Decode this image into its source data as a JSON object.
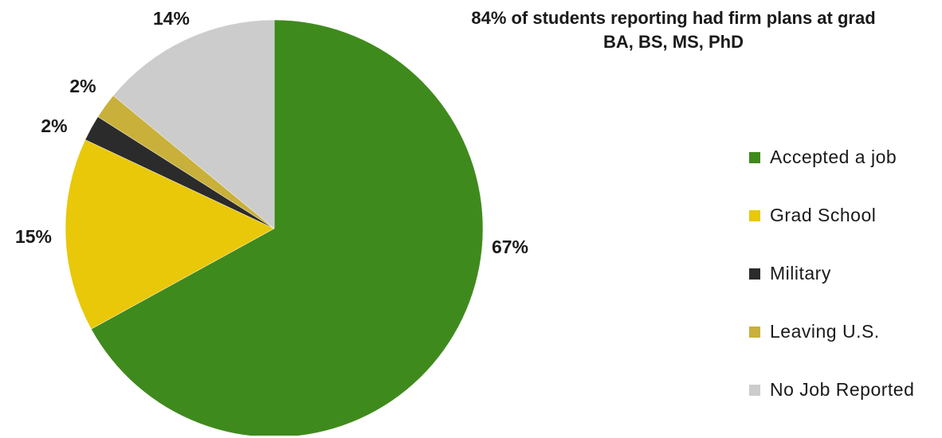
{
  "chart_data": {
    "type": "pie",
    "title_line1": "84% of students reporting had firm plans at grad",
    "title_line2": "BA, BS, MS, PhD",
    "slices": [
      {
        "label": "Accepted a job",
        "value": 67,
        "display": "67%",
        "color": "#3f8a1d"
      },
      {
        "label": "Grad School",
        "value": 15,
        "display": "15%",
        "color": "#e8c808"
      },
      {
        "label": "Military",
        "value": 2,
        "display": "2%",
        "color": "#2b2b2b"
      },
      {
        "label": "Leaving U.S.",
        "value": 2,
        "display": "2%",
        "color": "#c9b03a"
      },
      {
        "label": "No Job Reported",
        "value": 14,
        "display": "14%",
        "color": "#cccccc"
      }
    ],
    "legend_position": "right"
  }
}
